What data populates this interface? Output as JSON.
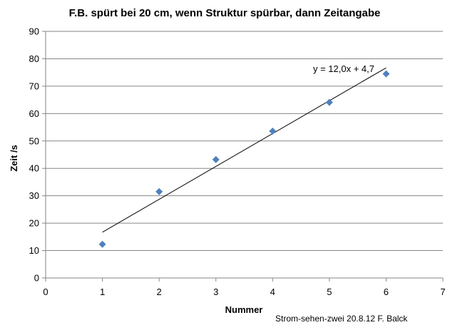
{
  "chart_data": {
    "type": "scatter",
    "title": "F.B. spürt bei 20 cm, wenn Struktur spürbar, dann Zeitangabe",
    "xlabel": "Nummer",
    "ylabel": "Zeit /s",
    "xlim": [
      0,
      7
    ],
    "ylim": [
      0,
      90
    ],
    "xticks": [
      0,
      1,
      2,
      3,
      4,
      5,
      6,
      7
    ],
    "yticks": [
      0,
      10,
      20,
      30,
      40,
      50,
      60,
      70,
      80,
      90
    ],
    "grid": "horizontal",
    "series": [
      {
        "x": [
          1,
          2,
          3,
          4,
          5,
          6
        ],
        "y": [
          12.3,
          31.5,
          43.2,
          53.6,
          64.1,
          74.5
        ],
        "marker": "diamond",
        "color": "#4F81BD"
      }
    ],
    "trendline": {
      "slope": 12.0,
      "intercept": 4.7,
      "x_range": [
        1,
        6
      ],
      "equation": "y = 12,0x + 4,7",
      "color": "#000000"
    },
    "annotation": "Strom-sehen-zwei 20.8.12 F. Balck"
  }
}
